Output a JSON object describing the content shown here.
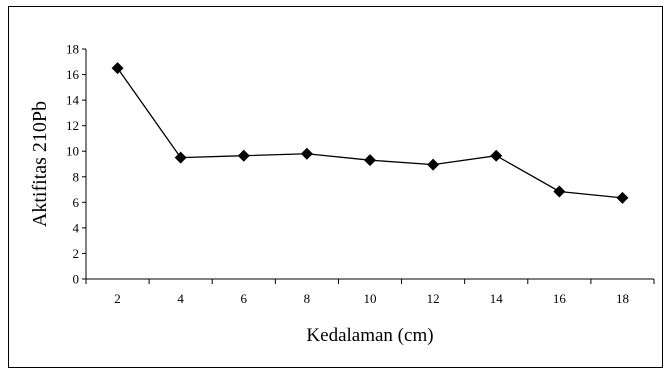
{
  "chart_data": {
    "type": "line",
    "title": "",
    "xlabel": "Kedalaman (cm)",
    "ylabel": "Aktifitas 210Pb",
    "x": [
      2,
      4,
      6,
      8,
      10,
      12,
      14,
      16,
      18
    ],
    "series": [
      {
        "values": [
          16.5,
          9.5,
          9.65,
          9.8,
          9.3,
          8.95,
          9.65,
          6.85,
          6.35
        ],
        "color": "#000000",
        "marker": "diamond"
      }
    ],
    "ylim": [
      0,
      18
    ],
    "yticks": [
      0,
      2,
      4,
      6,
      8,
      10,
      12,
      14,
      16,
      18
    ],
    "xtick_labels": [
      "2",
      "4",
      "6",
      "8",
      "10",
      "12",
      "14",
      "16",
      "18"
    ],
    "grid": false,
    "legend": "none"
  }
}
